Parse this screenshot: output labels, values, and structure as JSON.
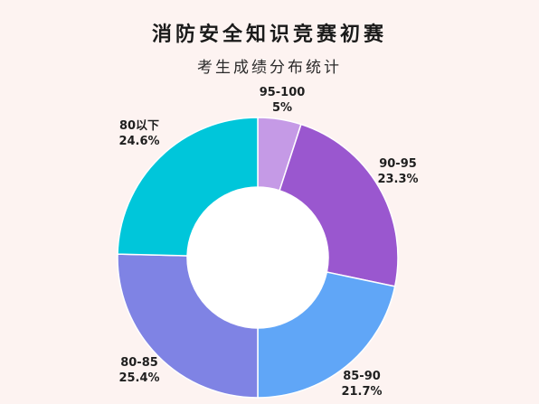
{
  "chart_data": {
    "type": "pie",
    "variant": "donut",
    "title": "消防安全知识竞赛初赛",
    "subtitle": "考生成绩分布统计",
    "slices": [
      {
        "label": "95-100",
        "value": 5,
        "value_text": "5%",
        "color": "#c59ae6"
      },
      {
        "label": "90-95",
        "value": 23.3,
        "value_text": "23.3%",
        "color": "#9a57cf"
      },
      {
        "label": "85-90",
        "value": 21.7,
        "value_text": "21.7%",
        "color": "#60a6f7"
      },
      {
        "label": "80-85",
        "value": 25.4,
        "value_text": "25.4%",
        "color": "#7f83e4"
      },
      {
        "label": "80以下",
        "value": 24.6,
        "value_text": "24.6%",
        "color": "#00c6da"
      }
    ]
  }
}
